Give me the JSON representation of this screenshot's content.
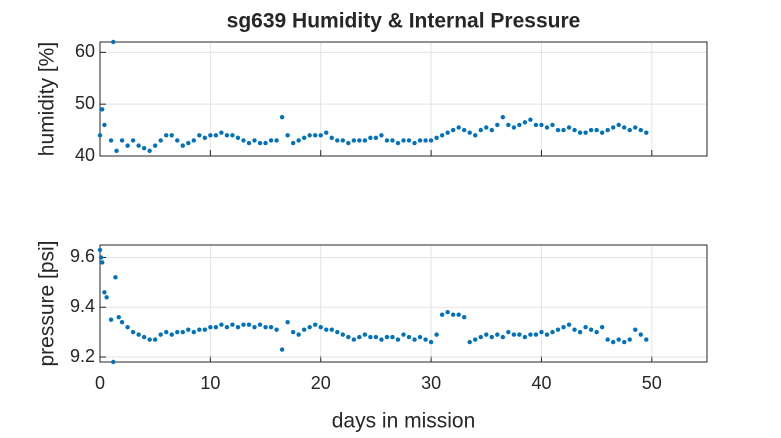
{
  "chart_data": [
    {
      "type": "scatter",
      "title": "sg639 Humidity & Internal Pressure",
      "ylabel": "humidity [%]",
      "color": "#0072bd",
      "xlim": [
        0,
        55
      ],
      "xticks": [
        0,
        10,
        20,
        30,
        40,
        50
      ],
      "show_xtick_labels": false,
      "ylim": [
        40,
        62
      ],
      "yticks": [
        40,
        50,
        60
      ],
      "grid": true,
      "x": [
        0,
        0.2,
        0.4,
        1,
        1.2,
        1.5,
        2,
        2.5,
        3,
        3.5,
        4,
        4.5,
        5,
        5.5,
        6,
        6.5,
        7,
        7.5,
        8,
        8.5,
        9,
        9.5,
        10,
        10.5,
        11,
        11.5,
        12,
        12.5,
        13,
        13.5,
        14,
        14.5,
        15,
        15.5,
        16,
        16.5,
        17,
        17.5,
        18,
        18.5,
        19,
        19.5,
        20,
        20.5,
        21,
        21.5,
        22,
        22.5,
        23,
        23.5,
        24,
        24.5,
        25,
        25.5,
        26,
        26.5,
        27,
        27.5,
        28,
        28.5,
        29,
        29.5,
        30,
        30.5,
        31,
        31.5,
        32,
        32.5,
        33,
        33.5,
        34,
        34.5,
        35,
        35.5,
        36,
        36.5,
        37,
        37.5,
        38,
        38.5,
        39,
        39.5,
        40,
        40.5,
        41,
        41.5,
        42,
        42.5,
        43,
        43.5,
        44,
        44.5,
        45,
        45.5,
        46,
        46.5,
        47,
        47.5,
        48,
        48.5,
        49,
        49.5
      ],
      "values": [
        44,
        49,
        46,
        43,
        62,
        41,
        43,
        42,
        43,
        42,
        41.5,
        41,
        42,
        43,
        44,
        44,
        43,
        42,
        42.5,
        43,
        44,
        43.5,
        44,
        44,
        44.5,
        44,
        44,
        43.5,
        43,
        42.5,
        43,
        42.5,
        42.5,
        43,
        43,
        47.5,
        44,
        42.5,
        43,
        43.5,
        44,
        44,
        44,
        44.5,
        43.5,
        43,
        43,
        42.5,
        43,
        43,
        43,
        43.5,
        43.5,
        44,
        43,
        43,
        42.5,
        43,
        43,
        42.5,
        43,
        43,
        43,
        43.5,
        44,
        44.5,
        45,
        45.5,
        45,
        44.5,
        44,
        45,
        45.5,
        45,
        46,
        47.5,
        46,
        45.5,
        46,
        46.5,
        47,
        46,
        46,
        45.5,
        46,
        45,
        45,
        45.5,
        45,
        44.5,
        44.5,
        45,
        45,
        44.5,
        45,
        45.5,
        46,
        45.5,
        45,
        45.5,
        45,
        44.5
      ]
    },
    {
      "type": "scatter",
      "ylabel": "pressure [psi]",
      "xlabel": "days in mission",
      "color": "#0072bd",
      "xlim": [
        0,
        55
      ],
      "xticks": [
        0,
        10,
        20,
        30,
        40,
        50
      ],
      "show_xtick_labels": true,
      "ylim": [
        9.18,
        9.65
      ],
      "yticks": [
        9.2,
        9.4,
        9.6
      ],
      "grid": true,
      "x": [
        0,
        0.1,
        0.2,
        0.4,
        0.6,
        1,
        1.2,
        1.4,
        1.7,
        2,
        2.5,
        3,
        3.5,
        4,
        4.5,
        5,
        5.5,
        6,
        6.5,
        7,
        7.5,
        8,
        8.5,
        9,
        9.5,
        10,
        10.5,
        11,
        11.5,
        12,
        12.5,
        13,
        13.5,
        14,
        14.5,
        15,
        15.5,
        16,
        16.5,
        17,
        17.5,
        18,
        18.5,
        19,
        19.5,
        20,
        20.5,
        21,
        21.5,
        22,
        22.5,
        23,
        23.5,
        24,
        24.5,
        25,
        25.5,
        26,
        26.5,
        27,
        27.5,
        28,
        28.5,
        29,
        29.5,
        30,
        30.5,
        31,
        31.5,
        32,
        32.5,
        33,
        33.5,
        34,
        34.5,
        35,
        35.5,
        36,
        36.5,
        37,
        37.5,
        38,
        38.5,
        39,
        39.5,
        40,
        40.5,
        41,
        41.5,
        42,
        42.5,
        43,
        43.5,
        44,
        44.5,
        45,
        45.5,
        46,
        46.5,
        47,
        47.5,
        48,
        48.5,
        49,
        49.5
      ],
      "values": [
        9.63,
        9.6,
        9.58,
        9.46,
        9.44,
        9.35,
        9.18,
        9.52,
        9.36,
        9.34,
        9.32,
        9.3,
        9.29,
        9.28,
        9.27,
        9.27,
        9.29,
        9.3,
        9.29,
        9.3,
        9.3,
        9.31,
        9.3,
        9.31,
        9.31,
        9.32,
        9.32,
        9.33,
        9.32,
        9.33,
        9.32,
        9.33,
        9.33,
        9.32,
        9.33,
        9.32,
        9.32,
        9.31,
        9.23,
        9.34,
        9.3,
        9.29,
        9.31,
        9.32,
        9.33,
        9.32,
        9.31,
        9.31,
        9.3,
        9.29,
        9.28,
        9.27,
        9.28,
        9.29,
        9.28,
        9.28,
        9.27,
        9.28,
        9.28,
        9.27,
        9.29,
        9.28,
        9.27,
        9.28,
        9.27,
        9.26,
        9.29,
        9.37,
        9.38,
        9.37,
        9.37,
        9.36,
        9.26,
        9.27,
        9.28,
        9.29,
        9.28,
        9.29,
        9.28,
        9.3,
        9.29,
        9.29,
        9.28,
        9.29,
        9.29,
        9.3,
        9.29,
        9.3,
        9.31,
        9.32,
        9.33,
        9.31,
        9.3,
        9.32,
        9.31,
        9.3,
        9.32,
        9.27,
        9.26,
        9.27,
        9.26,
        9.27,
        9.31,
        9.29,
        9.27
      ]
    }
  ]
}
